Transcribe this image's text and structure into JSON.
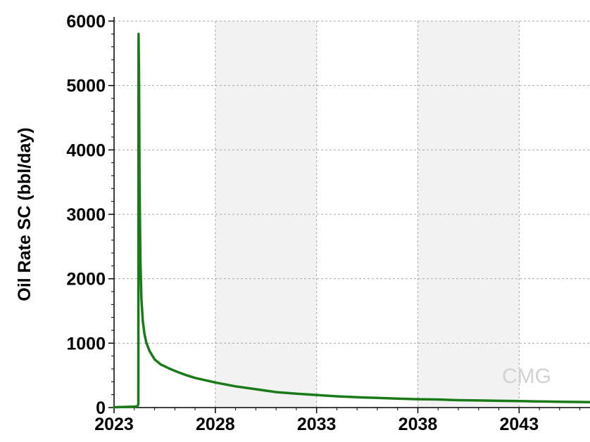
{
  "chart_data": {
    "type": "line",
    "title": "",
    "xlabel": "",
    "ylabel": "Oil Rate SC (bbl/day)",
    "xlim": [
      2023,
      2046.5
    ],
    "ylim": [
      0,
      6000
    ],
    "x_ticks": [
      "2023",
      "2028",
      "2033",
      "2038",
      "2043"
    ],
    "y_ticks": [
      "0",
      "1000",
      "2000",
      "3000",
      "4000",
      "5000",
      "6000"
    ],
    "grid": true,
    "legend": "none",
    "series": [
      {
        "color": "#1a7a1a",
        "x": [
          2023.0,
          2023.5,
          2024.0,
          2024.15,
          2024.2,
          2024.21,
          2024.23,
          2024.26,
          2024.3,
          2024.35,
          2024.42,
          2024.5,
          2024.6,
          2024.75,
          2025.0,
          2025.3,
          2025.7,
          2026.0,
          2026.5,
          2027.0,
          2028.0,
          2029.0,
          2030.0,
          2031.0,
          2032.0,
          2033.0,
          2034.0,
          2035.0,
          2036.0,
          2037.0,
          2038.0,
          2039.0,
          2040.0,
          2041.0,
          2042.0,
          2043.0,
          2044.0,
          2045.0,
          2046.5
        ],
        "values": [
          5,
          10,
          15,
          20,
          50,
          5800,
          5200,
          3500,
          2300,
          1700,
          1350,
          1150,
          1000,
          880,
          750,
          670,
          610,
          570,
          510,
          460,
          390,
          330,
          285,
          240,
          215,
          195,
          175,
          160,
          150,
          140,
          130,
          125,
          115,
          110,
          105,
          100,
          95,
          90,
          85
        ]
      }
    ],
    "watermark": "CMG"
  }
}
